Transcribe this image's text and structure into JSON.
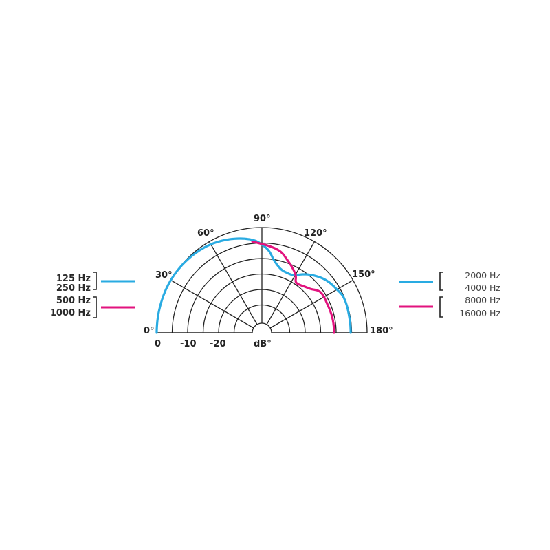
{
  "chart_data": {
    "type": "polar",
    "angle_range": [
      0,
      180
    ],
    "angle_tick_labels": [
      "0°",
      "30°",
      "60°",
      "90°",
      "120°",
      "150°",
      "180°"
    ],
    "angle_ticks": [
      0,
      30,
      60,
      90,
      120,
      150,
      180
    ],
    "radial_unit_label": "dB°",
    "radial_tick_labels": [
      "0",
      "-10",
      "-20"
    ],
    "radial_range": [
      -30,
      0
    ],
    "radial_rings_db": [
      0,
      -5,
      -10,
      -15,
      -20,
      -25
    ],
    "grid": true,
    "series": [
      {
        "color": "#29abe2",
        "legend_groups": [
          0,
          2
        ],
        "points": [
          [
            0,
            0
          ],
          [
            15,
            0
          ],
          [
            30,
            0
          ],
          [
            45,
            -0.3
          ],
          [
            60,
            -1
          ],
          [
            75,
            -2.5
          ],
          [
            85,
            -4
          ],
          [
            90,
            -5.5
          ],
          [
            95,
            -7.5
          ],
          [
            100,
            -10.5
          ],
          [
            107,
            -12.6
          ],
          [
            115,
            -13
          ],
          [
            120,
            -12.4
          ],
          [
            129,
            -9.8
          ],
          [
            140,
            -7.3
          ],
          [
            150,
            -6
          ],
          [
            157,
            -5.2
          ],
          [
            170,
            -5.3
          ],
          [
            180,
            -5.3
          ]
        ]
      },
      {
        "color": "#e2137e",
        "legend_groups": [
          1,
          3
        ],
        "points": [
          [
            84,
            -4.4
          ],
          [
            90,
            -5.3
          ],
          [
            102,
            -6.9
          ],
          [
            109,
            -9
          ],
          [
            120,
            -12.3
          ],
          [
            125,
            -14.4
          ],
          [
            137,
            -13
          ],
          [
            145,
            -11
          ],
          [
            157,
            -10.9
          ],
          [
            170,
            -10.7
          ],
          [
            180,
            -10.7
          ]
        ]
      }
    ],
    "legend": {
      "left": [
        {
          "labels": [
            "125 Hz",
            "250 Hz"
          ],
          "color": "#29abe2"
        },
        {
          "labels": [
            "500 Hz",
            "1000 Hz"
          ],
          "color": "#e2137e"
        }
      ],
      "right": [
        {
          "labels": [
            "2000 Hz",
            "4000 Hz"
          ],
          "color": "#29abe2"
        },
        {
          "labels": [
            "8000 Hz",
            "16000 Hz"
          ],
          "color": "#e2137e"
        }
      ]
    }
  }
}
